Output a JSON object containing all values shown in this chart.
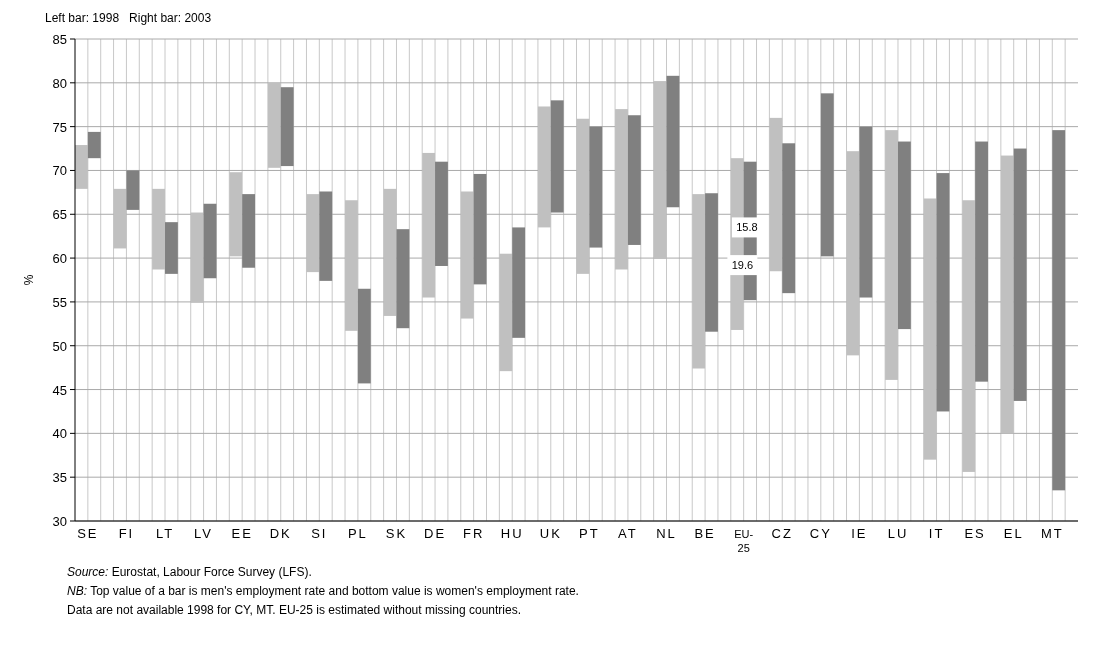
{
  "chart_data": {
    "type": "bar",
    "subtitle": "Left bar: 1998   Right bar: 2003",
    "ylabel": "%",
    "categories": [
      "SE",
      "FI",
      "LT",
      "LV",
      "EE",
      "DK",
      "SI",
      "PL",
      "SK",
      "DE",
      "FR",
      "HU",
      "UK",
      "PT",
      "AT",
      "NL",
      "BE",
      "EU-25",
      "CZ",
      "CY",
      "IE",
      "LU",
      "IT",
      "ES",
      "EL",
      "MT"
    ],
    "series": [
      {
        "color": "#c0c0c0",
        "base": [
          67.9,
          61.1,
          58.7,
          54.9,
          60.2,
          70.3,
          58.4,
          51.7,
          53.4,
          55.5,
          53.1,
          47.1,
          63.5,
          58.2,
          58.7,
          59.9,
          47.4,
          51.8,
          58.5,
          null,
          48.9,
          46.1,
          37.0,
          35.6,
          40.0,
          null
        ],
        "values": [
          5.0,
          6.8,
          9.2,
          10.3,
          9.6,
          9.7,
          8.9,
          14.9,
          14.5,
          16.5,
          14.5,
          13.4,
          13.8,
          17.7,
          18.3,
          20.3,
          19.9,
          19.6,
          17.5,
          null,
          23.3,
          28.5,
          29.8,
          31.0,
          31.7,
          null
        ]
      },
      {
        "color": "#808080",
        "base": [
          71.4,
          65.5,
          58.2,
          57.7,
          58.9,
          70.5,
          57.4,
          45.7,
          52.0,
          59.1,
          57.0,
          50.9,
          65.2,
          61.2,
          61.5,
          65.8,
          51.6,
          55.2,
          56.0,
          60.2,
          55.5,
          51.9,
          42.5,
          45.9,
          43.7,
          33.5
        ],
        "values": [
          3.0,
          4.5,
          5.9,
          8.5,
          8.4,
          9.0,
          10.2,
          10.8,
          11.3,
          11.9,
          12.6,
          12.6,
          12.8,
          13.8,
          14.8,
          15.0,
          15.8,
          15.8,
          17.1,
          18.6,
          19.5,
          21.4,
          27.2,
          27.4,
          28.8,
          41.1
        ]
      }
    ],
    "ylim": [
      30,
      85
    ],
    "yticks": [
      30,
      35,
      40,
      45,
      50,
      55,
      60,
      65,
      70,
      75,
      80,
      85
    ],
    "grid": true,
    "annotations": [
      {
        "text": "15.8",
        "x": "EU-25",
        "y": 63.5
      },
      {
        "text": "19.6",
        "x": "EU-25",
        "y": 59.2
      },
      "Source: Eurostat, Labour Force Survey (LFS).",
      "NB: Top value of a bar is men's employment rate and bottom value is women's employment rate.",
      "Data are not available 1998 for CY, MT. EU-25 is estimated without missing countries."
    ]
  }
}
